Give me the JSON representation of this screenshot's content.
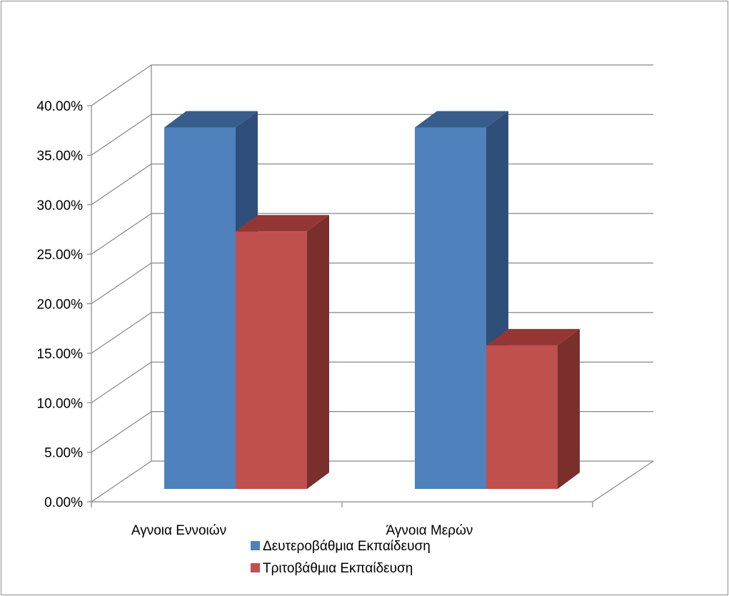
{
  "chart_data": {
    "type": "bar",
    "categories": [
      "Αγνοια Εννοιών",
      "Άγνοια Μερών"
    ],
    "series": [
      {
        "name": "Δευτεροβάθμια Εκπαίδευση",
        "values": [
          36.5,
          36.5
        ]
      },
      {
        "name": "Τριτοβάθμια Εκπαίδευση",
        "values": [
          26.0,
          14.5
        ]
      }
    ],
    "ylim": [
      0,
      40
    ],
    "yticks": [
      "0.00%",
      "5.00%",
      "10.00%",
      "15.00%",
      "20.00%",
      "25.00%",
      "30.00%",
      "35.00%",
      "40.00%"
    ],
    "grid": true,
    "legend": "bottom",
    "style": "3d-clustered-column",
    "colors": {
      "series": [
        "#4f81bd",
        "#c0504d"
      ],
      "series_side": [
        "#2f4f7a",
        "#7a2f2d"
      ],
      "series_top": [
        "#385d8a",
        "#943634"
      ],
      "grid": "#868686"
    }
  }
}
